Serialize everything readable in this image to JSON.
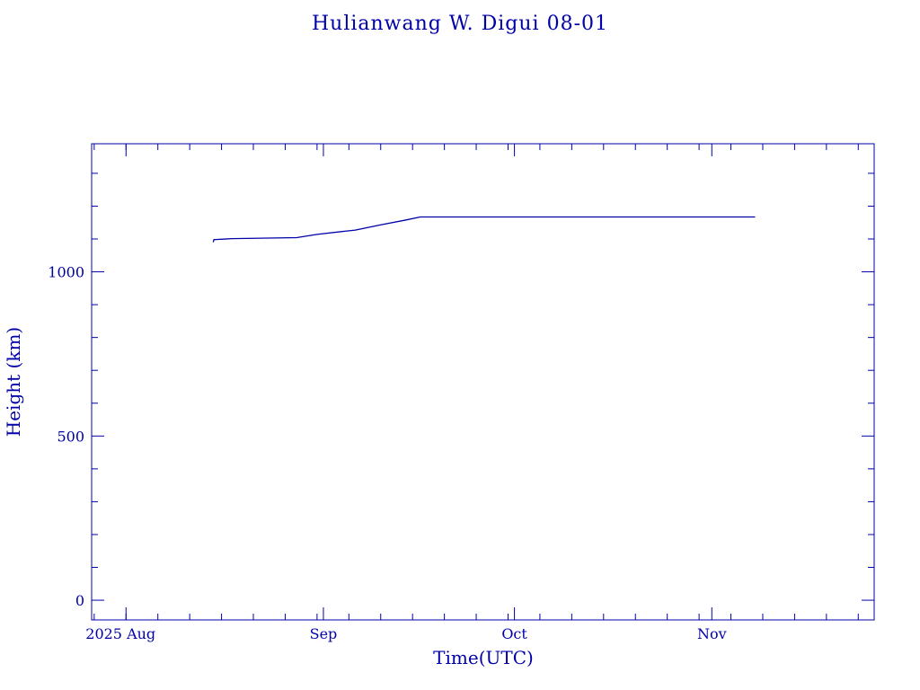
{
  "chart_data": {
    "type": "line",
    "title": "Hulianwang W. Digui 08-01",
    "xlabel": "Time(UTC)",
    "ylabel": "Height (km)",
    "xlim": [
      "2025-07-26.6",
      "2025-11-26.5"
    ],
    "ylim": [
      -60,
      1390
    ],
    "x_tick_labels": [
      {
        "date": "2025-08-01",
        "label": "2025 Aug"
      },
      {
        "date": "2025-09-01",
        "label": "Sep"
      },
      {
        "date": "2025-10-01",
        "label": "Oct"
      },
      {
        "date": "2025-11-01",
        "label": "Nov"
      }
    ],
    "y_tick_labels": [
      {
        "value": 0,
        "label": "0"
      },
      {
        "value": 500,
        "label": "500"
      },
      {
        "value": 1000,
        "label": "1000"
      }
    ],
    "grid": false,
    "series": [
      {
        "name": "Height",
        "color": "#0000a8",
        "points": [
          [
            "2025-08-14.7",
            1090
          ],
          [
            "2025-08-14.8",
            1098
          ],
          [
            "2025-08-17.6",
            1101
          ],
          [
            "2025-08-27.8",
            1104
          ],
          [
            "2025-08-31.0",
            1114
          ],
          [
            "2025-09-04.5",
            1124
          ],
          [
            "2025-09-06.0",
            1127
          ],
          [
            "2025-09-10.0",
            1143
          ],
          [
            "2025-09-14.0",
            1158
          ],
          [
            "2025-09-16.2",
            1167
          ],
          [
            "2025-11-07.8",
            1167
          ]
        ]
      }
    ]
  }
}
